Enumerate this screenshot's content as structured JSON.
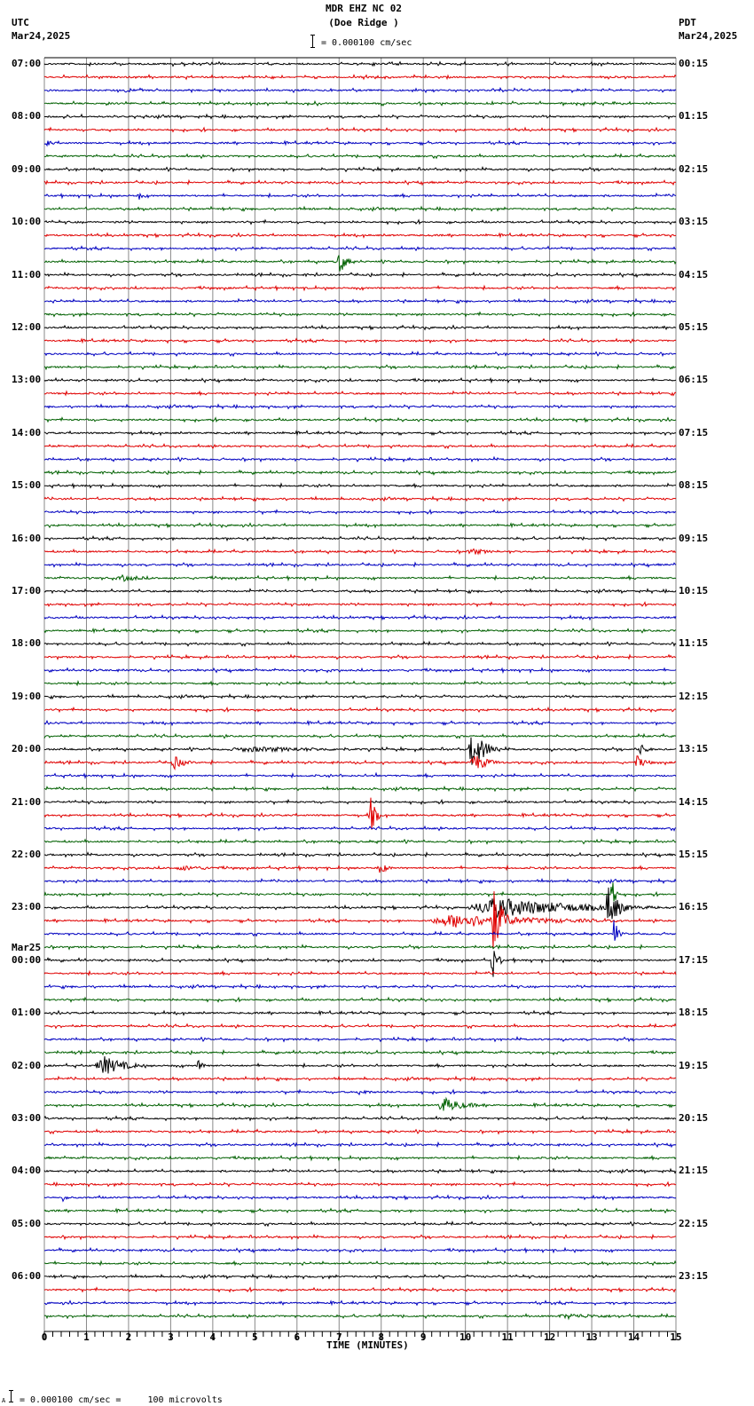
{
  "header": {
    "station": "MDR EHZ NC 02",
    "location": "(Doe Ridge )",
    "left_tz": "UTC",
    "left_date": "Mar24,2025",
    "right_tz": "PDT",
    "right_date": "Mar24,2025",
    "scale_text": "= 0.000100 cm/sec"
  },
  "footer": {
    "scale_prefix": "A",
    "scale_text": "= 0.000100 cm/sec =     100 microvolts"
  },
  "chart_data": {
    "type": "line",
    "title": "MDR EHZ NC 02 (Doe Ridge ) - helicorder seismogram",
    "xlabel": "TIME (MINUTES)",
    "ylabel": "",
    "x_ticks": [
      "0",
      "1",
      "2",
      "3",
      "4",
      "5",
      "6",
      "7",
      "8",
      "9",
      "10",
      "11",
      "12",
      "13",
      "14",
      "15"
    ],
    "xlim": [
      0,
      15
    ],
    "minor_tick_step_minutes": 0.2,
    "grid": true,
    "rows_per_hour": 4,
    "row_minutes": 15,
    "trace_colors": [
      "#000000",
      "#e00000",
      "#0000c0",
      "#006000"
    ],
    "left_labels": [
      {
        "row": 0,
        "text": "07:00"
      },
      {
        "row": 4,
        "text": "08:00"
      },
      {
        "row": 8,
        "text": "09:00"
      },
      {
        "row": 12,
        "text": "10:00"
      },
      {
        "row": 16,
        "text": "11:00"
      },
      {
        "row": 20,
        "text": "12:00"
      },
      {
        "row": 24,
        "text": "13:00"
      },
      {
        "row": 28,
        "text": "14:00"
      },
      {
        "row": 32,
        "text": "15:00"
      },
      {
        "row": 36,
        "text": "16:00"
      },
      {
        "row": 40,
        "text": "17:00"
      },
      {
        "row": 44,
        "text": "18:00"
      },
      {
        "row": 48,
        "text": "19:00"
      },
      {
        "row": 52,
        "text": "20:00"
      },
      {
        "row": 56,
        "text": "21:00"
      },
      {
        "row": 60,
        "text": "22:00"
      },
      {
        "row": 64,
        "text": "23:00"
      },
      {
        "row": 68,
        "text": "00:00",
        "date": "Mar25"
      },
      {
        "row": 72,
        "text": "01:00"
      },
      {
        "row": 76,
        "text": "02:00"
      },
      {
        "row": 80,
        "text": "03:00"
      },
      {
        "row": 84,
        "text": "04:00"
      },
      {
        "row": 88,
        "text": "05:00"
      },
      {
        "row": 92,
        "text": "06:00"
      }
    ],
    "right_labels": [
      {
        "row": 0,
        "text": "00:15"
      },
      {
        "row": 4,
        "text": "01:15"
      },
      {
        "row": 8,
        "text": "02:15"
      },
      {
        "row": 12,
        "text": "03:15"
      },
      {
        "row": 16,
        "text": "04:15"
      },
      {
        "row": 20,
        "text": "05:15"
      },
      {
        "row": 24,
        "text": "06:15"
      },
      {
        "row": 28,
        "text": "07:15"
      },
      {
        "row": 32,
        "text": "08:15"
      },
      {
        "row": 36,
        "text": "09:15"
      },
      {
        "row": 40,
        "text": "10:15"
      },
      {
        "row": 44,
        "text": "11:15"
      },
      {
        "row": 48,
        "text": "12:15"
      },
      {
        "row": 52,
        "text": "13:15"
      },
      {
        "row": 56,
        "text": "14:15"
      },
      {
        "row": 60,
        "text": "15:15"
      },
      {
        "row": 64,
        "text": "16:15"
      },
      {
        "row": 68,
        "text": "17:15"
      },
      {
        "row": 72,
        "text": "18:15"
      },
      {
        "row": 76,
        "text": "19:15"
      },
      {
        "row": 80,
        "text": "20:15"
      },
      {
        "row": 84,
        "text": "21:15"
      },
      {
        "row": 88,
        "text": "22:15"
      },
      {
        "row": 92,
        "text": "23:15"
      }
    ],
    "events": [
      {
        "row": 6,
        "start_min": 0.0,
        "dur_min": 0.4,
        "amp": 4
      },
      {
        "row": 10,
        "start_min": 2.2,
        "dur_min": 0.3,
        "amp": 5
      },
      {
        "row": 15,
        "start_min": 6.95,
        "dur_min": 0.4,
        "amp": 14
      },
      {
        "row": 39,
        "start_min": 1.7,
        "dur_min": 1.2,
        "amp": 4
      },
      {
        "row": 37,
        "start_min": 10.0,
        "dur_min": 1.0,
        "amp": 4
      },
      {
        "row": 52,
        "start_min": 10.05,
        "dur_min": 0.8,
        "amp": 22
      },
      {
        "row": 52,
        "start_min": 14.1,
        "dur_min": 0.4,
        "amp": 7
      },
      {
        "row": 52,
        "start_min": 4.0,
        "dur_min": 6.0,
        "amp": 3
      },
      {
        "row": 53,
        "start_min": 3.0,
        "dur_min": 0.6,
        "amp": 8
      },
      {
        "row": 53,
        "start_min": 10.1,
        "dur_min": 0.8,
        "amp": 10
      },
      {
        "row": 53,
        "start_min": 14.0,
        "dur_min": 0.5,
        "amp": 8
      },
      {
        "row": 54,
        "start_min": 7.85,
        "dur_min": 0.05,
        "amp": 12
      },
      {
        "row": 57,
        "start_min": 7.7,
        "dur_min": 0.3,
        "amp": 22
      },
      {
        "row": 61,
        "start_min": 3.0,
        "dur_min": 2.0,
        "amp": 3
      },
      {
        "row": 61,
        "start_min": 7.9,
        "dur_min": 0.4,
        "amp": 8
      },
      {
        "row": 63,
        "start_min": 13.45,
        "dur_min": 0.2,
        "amp": 30
      },
      {
        "row": 64,
        "start_min": 10.0,
        "dur_min": 4.6,
        "amp": 12
      },
      {
        "row": 64,
        "start_min": 13.3,
        "dur_min": 0.6,
        "amp": 25
      },
      {
        "row": 65,
        "start_min": 9.0,
        "dur_min": 5.0,
        "amp": 8
      },
      {
        "row": 65,
        "start_min": 10.6,
        "dur_min": 0.5,
        "amp": 40
      },
      {
        "row": 66,
        "start_min": 13.5,
        "dur_min": 0.2,
        "amp": 20
      },
      {
        "row": 68,
        "start_min": 10.6,
        "dur_min": 0.3,
        "amp": 22
      },
      {
        "row": 76,
        "start_min": 1.2,
        "dur_min": 1.2,
        "amp": 12
      },
      {
        "row": 76,
        "start_min": 3.6,
        "dur_min": 0.4,
        "amp": 7
      },
      {
        "row": 78,
        "start_min": 7.4,
        "dur_min": 0.6,
        "amp": 4
      },
      {
        "row": 79,
        "start_min": 9.3,
        "dur_min": 1.2,
        "amp": 9
      },
      {
        "row": 86,
        "start_min": 0.4,
        "dur_min": 0.2,
        "amp": 5
      },
      {
        "row": 95,
        "start_min": 12.0,
        "dur_min": 3.0,
        "amp": 3
      }
    ]
  }
}
